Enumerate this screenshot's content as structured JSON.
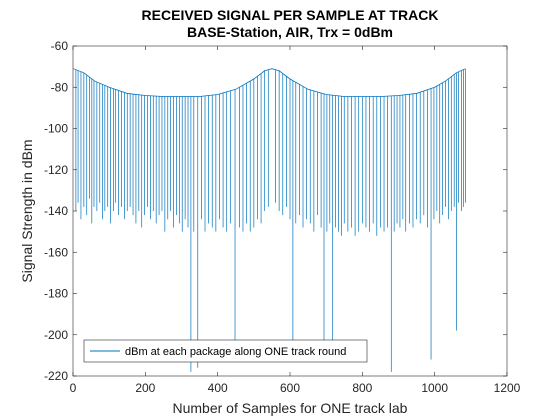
{
  "chart_data": {
    "type": "line",
    "title": [
      "RECEIVED SIGNAL PER SAMPLE AT TRACK",
      "BASE-Station, AIR, Trx = 0dBm"
    ],
    "xlabel": "Number of Samples for ONE track lab",
    "ylabel": "Signal Strength in dBm",
    "xlim": [
      0,
      1200
    ],
    "ylim": [
      -220,
      -60
    ],
    "xticks": [
      0,
      200,
      400,
      600,
      800,
      1000,
      1200
    ],
    "yticks": [
      -220,
      -200,
      -180,
      -160,
      -140,
      -120,
      -100,
      -80,
      -60
    ],
    "grid": false,
    "legend_position": "bottom-left",
    "color": "#0072BD",
    "series": [
      {
        "name": "dBm at each package along ONE track round",
        "envelope": {
          "x": [
            1,
            30,
            60,
            100,
            150,
            200,
            250,
            300,
            350,
            400,
            450,
            500,
            530,
            550,
            570,
            600,
            650,
            700,
            750,
            800,
            850,
            900,
            950,
            1000,
            1030,
            1060,
            1085
          ],
          "y": [
            -71,
            -73,
            -77,
            -80,
            -83,
            -84,
            -84.5,
            -84.5,
            -84.5,
            -83.5,
            -81,
            -76,
            -72,
            -71,
            -72,
            -76,
            -81,
            -83.5,
            -84.5,
            -84.5,
            -84.5,
            -84,
            -83,
            -80,
            -77,
            -73,
            -71
          ]
        },
        "drops": {
          "x": [
            8,
            14,
            22,
            30,
            38,
            46,
            52,
            58,
            66,
            74,
            82,
            88,
            96,
            104,
            112,
            118,
            126,
            134,
            142,
            150,
            158,
            166,
            174,
            182,
            190,
            198,
            206,
            214,
            222,
            230,
            238,
            246,
            254,
            262,
            270,
            278,
            286,
            294,
            302,
            310,
            318,
            326,
            334,
            345,
            355,
            365,
            375,
            385,
            395,
            405,
            415,
            425,
            435,
            448,
            460,
            470,
            480,
            490,
            500,
            510,
            520,
            530,
            540,
            560,
            570,
            580,
            590,
            600,
            608,
            616,
            626,
            636,
            646,
            656,
            666,
            676,
            686,
            694,
            702,
            710,
            718,
            726,
            734,
            742,
            750,
            760,
            770,
            780,
            790,
            800,
            810,
            820,
            830,
            840,
            850,
            860,
            870,
            880,
            888,
            896,
            904,
            912,
            920,
            930,
            940,
            950,
            960,
            970,
            980,
            990,
            998,
            1006,
            1014,
            1022,
            1030,
            1038,
            1046,
            1054,
            1060,
            1066,
            1074,
            1080,
            1085
          ],
          "y": [
            -140,
            -136,
            -144,
            -138,
            -142,
            -134,
            -146,
            -138,
            -140,
            -136,
            -144,
            -140,
            -138,
            -146,
            -140,
            -136,
            -142,
            -138,
            -144,
            -140,
            -138,
            -142,
            -146,
            -140,
            -148,
            -142,
            -138,
            -144,
            -140,
            -146,
            -142,
            -140,
            -150,
            -144,
            -140,
            -148,
            -142,
            -146,
            -150,
            -144,
            -148,
            -218,
            -150,
            -216,
            -144,
            -150,
            -146,
            -148,
            -150,
            -144,
            -148,
            -150,
            -146,
            -205,
            -148,
            -150,
            -146,
            -150,
            -148,
            -144,
            -146,
            -140,
            -138,
            -136,
            -140,
            -142,
            -138,
            -144,
            -205,
            -146,
            -142,
            -148,
            -144,
            -146,
            -150,
            -142,
            -148,
            -205,
            -150,
            -146,
            -210,
            -148,
            -150,
            -152,
            -146,
            -150,
            -148,
            -152,
            -150,
            -146,
            -148,
            -150,
            -146,
            -152,
            -148,
            -150,
            -148,
            -218,
            -150,
            -146,
            -148,
            -144,
            -150,
            -146,
            -148,
            -144,
            -146,
            -142,
            -148,
            -212,
            -144,
            -140,
            -146,
            -142,
            -138,
            -144,
            -140,
            -138,
            -198,
            -136,
            -140,
            -138,
            -136
          ]
        }
      }
    ]
  }
}
